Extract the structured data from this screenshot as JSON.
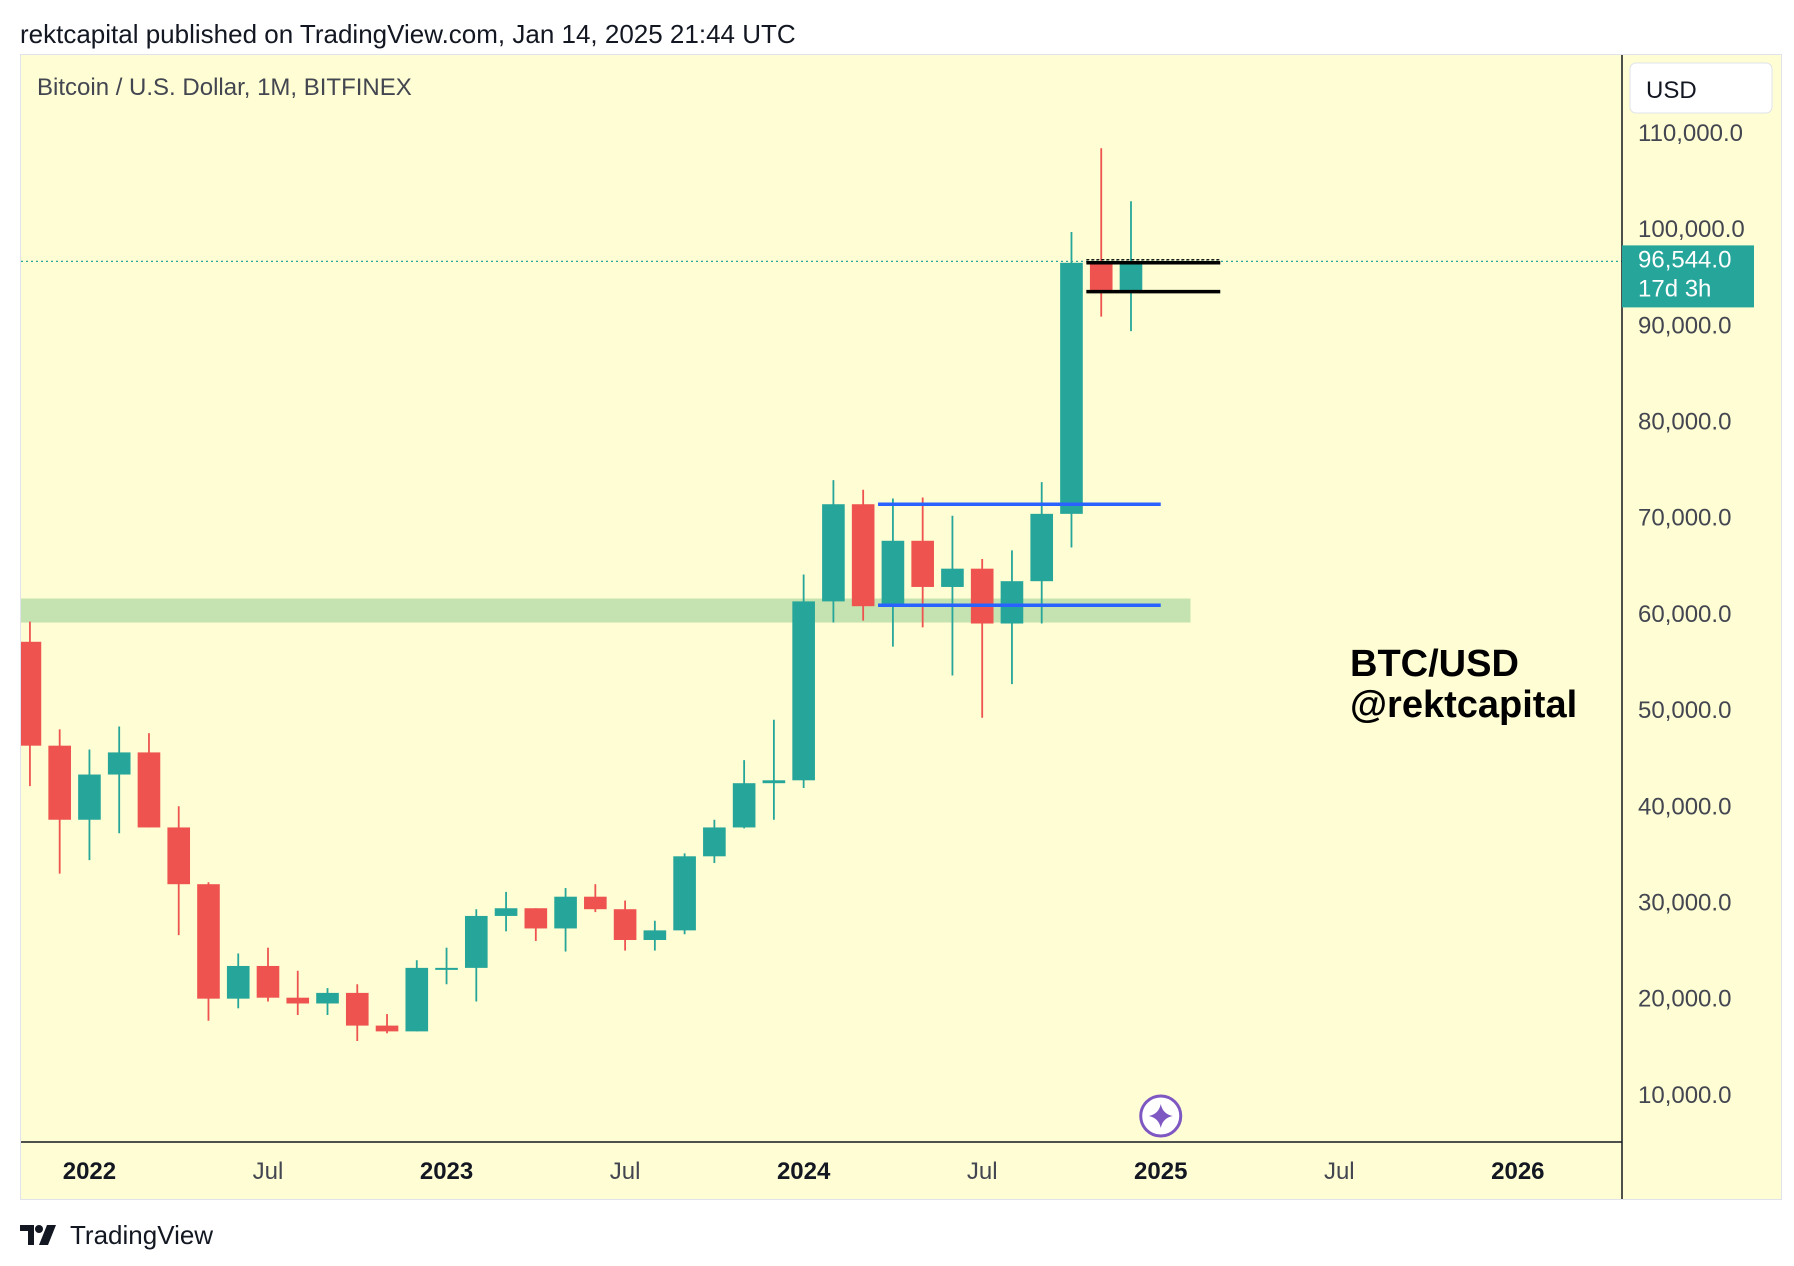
{
  "header": {
    "published_text": "rektcapital published on TradingView.com, Jan 14, 2025 21:44 UTC"
  },
  "footer": {
    "brand": "TradingView",
    "logo_icon": "tradingview-logo-icon"
  },
  "colors": {
    "background": "#fefdd3",
    "bull": "#26a69a",
    "bear": "#ef5350",
    "range_line": "#2962ff",
    "support_zone": "#c5e3b0",
    "resistance_line": "#000000",
    "price_tag": "#26a69a",
    "axis_text": "#434651",
    "event_marker": "#7e57c2"
  },
  "chart_data": {
    "type": "candlestick",
    "title": "Bitcoin / U.S. Dollar, 1M, BITFINEX",
    "currency_button": "USD",
    "watermark": [
      "BTC/USD",
      "@rektcapital"
    ],
    "ylim": [
      5000,
      118000
    ],
    "y_ticks": [
      {
        "value": 110000,
        "label": "110,000.0"
      },
      {
        "value": 100000,
        "label": "100,000.0"
      },
      {
        "value": 90000,
        "label": "90,000.0"
      },
      {
        "value": 80000,
        "label": "80,000.0"
      },
      {
        "value": 70000,
        "label": "70,000.0"
      },
      {
        "value": 60000,
        "label": "60,000.0"
      },
      {
        "value": 50000,
        "label": "50,000.0"
      },
      {
        "value": 40000,
        "label": "40,000.0"
      },
      {
        "value": 30000,
        "label": "30,000.0"
      },
      {
        "value": 20000,
        "label": "20,000.0"
      },
      {
        "value": 10000,
        "label": "10,000.0"
      }
    ],
    "x_ticks": [
      {
        "index": 2,
        "label": "2022",
        "bold": true
      },
      {
        "index": 8,
        "label": "Jul",
        "bold": false
      },
      {
        "index": 14,
        "label": "2023",
        "bold": true
      },
      {
        "index": 20,
        "label": "Jul",
        "bold": false
      },
      {
        "index": 26,
        "label": "2024",
        "bold": true
      },
      {
        "index": 32,
        "label": "Jul",
        "bold": false
      },
      {
        "index": 38,
        "label": "2025",
        "bold": true
      },
      {
        "index": 44,
        "label": "Jul",
        "bold": false
      },
      {
        "index": 50,
        "label": "2026",
        "bold": true
      }
    ],
    "first_month": "2021-12",
    "x_range_index": [
      -0.3,
      53.5
    ],
    "last_price": {
      "value": 96544.0,
      "label": "96,544.0",
      "countdown": "17d 3h"
    },
    "candles": [
      {
        "o": 57000,
        "h": 59100,
        "l": 42000,
        "c": 46200
      },
      {
        "o": 46200,
        "h": 47900,
        "l": 32900,
        "c": 38500
      },
      {
        "o": 38500,
        "h": 45800,
        "l": 34300,
        "c": 43200
      },
      {
        "o": 43200,
        "h": 48200,
        "l": 37100,
        "c": 45500
      },
      {
        "o": 45500,
        "h": 47500,
        "l": 37700,
        "c": 37700
      },
      {
        "o": 37700,
        "h": 39900,
        "l": 26500,
        "c": 31800
      },
      {
        "o": 31800,
        "h": 32000,
        "l": 17600,
        "c": 19900
      },
      {
        "o": 19900,
        "h": 24600,
        "l": 18900,
        "c": 23300
      },
      {
        "o": 23300,
        "h": 25200,
        "l": 19600,
        "c": 20000
      },
      {
        "o": 20000,
        "h": 22800,
        "l": 18200,
        "c": 19400
      },
      {
        "o": 19400,
        "h": 21000,
        "l": 18200,
        "c": 20500
      },
      {
        "o": 20500,
        "h": 21400,
        "l": 15500,
        "c": 17100
      },
      {
        "o": 17100,
        "h": 18300,
        "l": 16300,
        "c": 16500
      },
      {
        "o": 16500,
        "h": 23900,
        "l": 16500,
        "c": 23100
      },
      {
        "o": 23100,
        "h": 25200,
        "l": 21400,
        "c": 23100
      },
      {
        "o": 23100,
        "h": 29200,
        "l": 19600,
        "c": 28500
      },
      {
        "o": 28500,
        "h": 31000,
        "l": 26900,
        "c": 29300
      },
      {
        "o": 29300,
        "h": 29300,
        "l": 25900,
        "c": 27200
      },
      {
        "o": 27200,
        "h": 31400,
        "l": 24800,
        "c": 30500
      },
      {
        "o": 30500,
        "h": 31800,
        "l": 28900,
        "c": 29200
      },
      {
        "o": 29200,
        "h": 30100,
        "l": 24900,
        "c": 26000
      },
      {
        "o": 26000,
        "h": 28000,
        "l": 24900,
        "c": 27000
      },
      {
        "o": 27000,
        "h": 35000,
        "l": 26600,
        "c": 34700
      },
      {
        "o": 34700,
        "h": 38500,
        "l": 34000,
        "c": 37700
      },
      {
        "o": 37700,
        "h": 44700,
        "l": 37600,
        "c": 42300
      },
      {
        "o": 42300,
        "h": 48900,
        "l": 38500,
        "c": 42600
      },
      {
        "o": 42600,
        "h": 64000,
        "l": 41800,
        "c": 61200
      },
      {
        "o": 61200,
        "h": 73800,
        "l": 59000,
        "c": 71300
      },
      {
        "o": 71300,
        "h": 72800,
        "l": 59200,
        "c": 60700
      },
      {
        "o": 60700,
        "h": 71900,
        "l": 56500,
        "c": 67500
      },
      {
        "o": 67500,
        "h": 72000,
        "l": 58500,
        "c": 62700
      },
      {
        "o": 62700,
        "h": 70100,
        "l": 53500,
        "c": 64600
      },
      {
        "o": 64600,
        "h": 65600,
        "l": 49100,
        "c": 58900
      },
      {
        "o": 58900,
        "h": 66500,
        "l": 52600,
        "c": 63300
      },
      {
        "o": 63300,
        "h": 73600,
        "l": 58900,
        "c": 70300
      },
      {
        "o": 70300,
        "h": 99600,
        "l": 66800,
        "c": 96400
      },
      {
        "o": 96400,
        "h": 108300,
        "l": 90800,
        "c": 93400
      },
      {
        "o": 93400,
        "h": 102800,
        "l": 89300,
        "c": 96544
      }
    ],
    "annotations": {
      "support_zone": {
        "from_index": -0.3,
        "to_index": 39.0,
        "low": 59000,
        "high": 61500
      },
      "range_top": {
        "from_index": 28.5,
        "to_index": 38.0,
        "value": 71300
      },
      "range_bottom": {
        "from_index": 28.5,
        "to_index": 38.0,
        "value": 60800
      },
      "resistance_upper": {
        "from_index": 35.5,
        "to_index": 40.0,
        "value": 96400
      },
      "resistance_lower": {
        "from_index": 35.5,
        "to_index": 40.0,
        "value": 93400
      },
      "event_marker_index": 38
    }
  }
}
